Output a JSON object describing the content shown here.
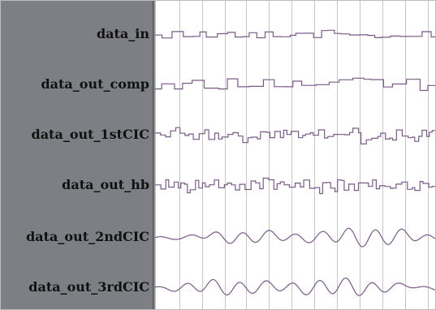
{
  "signals": [
    {
      "name": "data_in",
      "style": "step",
      "color": "#7a5a88"
    },
    {
      "name": "data_out_comp",
      "style": "step",
      "color": "#7a5a88"
    },
    {
      "name": "data_out_1stCIC",
      "style": "step",
      "color": "#7a5a88"
    },
    {
      "name": "data_out_hb",
      "style": "step",
      "color": "#7a5a88"
    },
    {
      "name": "data_out_2ndCIC",
      "style": "smooth",
      "color": "#7a5a88"
    },
    {
      "name": "data_out_3rdCIC",
      "style": "smooth",
      "color": "#7a5a88"
    }
  ],
  "colors": {
    "name_panel": "#7d7f85",
    "grid_line": "#c6c6c6",
    "waveform": "#7a5a88"
  }
}
